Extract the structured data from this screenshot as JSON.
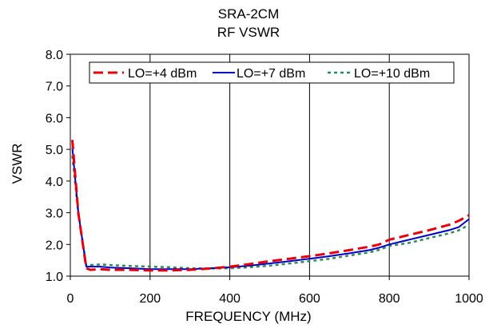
{
  "chart_data": {
    "type": "line",
    "title": "SRA-2CM",
    "subtitle": "RF VSWR",
    "xlabel": "FREQUENCY (MHz)",
    "ylabel": "VSWR",
    "xlim": [
      0,
      1000
    ],
    "ylim": [
      1.0,
      8.0
    ],
    "x_ticks": [
      "0",
      "200",
      "400",
      "600",
      "800",
      "1000"
    ],
    "y_ticks": [
      "1.0",
      "2.0",
      "3.0",
      "4.0",
      "5.0",
      "6.0",
      "7.0",
      "8.0"
    ],
    "grid": "vertical",
    "legend_position": "top",
    "series": [
      {
        "name": "LO=+4 dBm",
        "color": "#e8000b",
        "style": "dashed",
        "x": [
          5,
          20,
          40,
          50,
          75,
          100,
          150,
          200,
          250,
          300,
          350,
          400,
          450,
          500,
          550,
          600,
          650,
          700,
          750,
          775,
          800,
          850,
          900,
          950,
          975,
          1000
        ],
        "y": [
          5.3,
          3.0,
          1.25,
          1.2,
          1.22,
          1.2,
          1.2,
          1.18,
          1.18,
          1.2,
          1.24,
          1.3,
          1.38,
          1.47,
          1.55,
          1.63,
          1.72,
          1.82,
          1.93,
          2.0,
          2.15,
          2.3,
          2.45,
          2.62,
          2.75,
          2.92
        ]
      },
      {
        "name": "LO=+7 dBm",
        "color": "#0000cc",
        "style": "solid",
        "x": [
          5,
          20,
          40,
          50,
          75,
          100,
          150,
          200,
          250,
          300,
          350,
          400,
          450,
          500,
          550,
          600,
          650,
          700,
          750,
          775,
          800,
          850,
          900,
          950,
          975,
          1000
        ],
        "y": [
          5.05,
          3.0,
          1.3,
          1.3,
          1.3,
          1.27,
          1.25,
          1.22,
          1.22,
          1.22,
          1.25,
          1.28,
          1.33,
          1.4,
          1.47,
          1.55,
          1.63,
          1.72,
          1.82,
          1.9,
          2.0,
          2.15,
          2.3,
          2.45,
          2.55,
          2.8
        ]
      },
      {
        "name": "LO=+10 dBm",
        "color": "#2e8b57",
        "style": "dotted",
        "x": [
          5,
          20,
          40,
          50,
          75,
          100,
          150,
          200,
          250,
          300,
          350,
          400,
          450,
          500,
          550,
          600,
          650,
          700,
          750,
          775,
          800,
          850,
          900,
          950,
          975,
          1000
        ],
        "y": [
          4.8,
          3.0,
          1.33,
          1.35,
          1.37,
          1.35,
          1.32,
          1.3,
          1.28,
          1.25,
          1.24,
          1.25,
          1.28,
          1.33,
          1.4,
          1.47,
          1.55,
          1.65,
          1.75,
          1.83,
          1.95,
          2.05,
          2.2,
          2.35,
          2.45,
          2.62
        ]
      }
    ]
  }
}
